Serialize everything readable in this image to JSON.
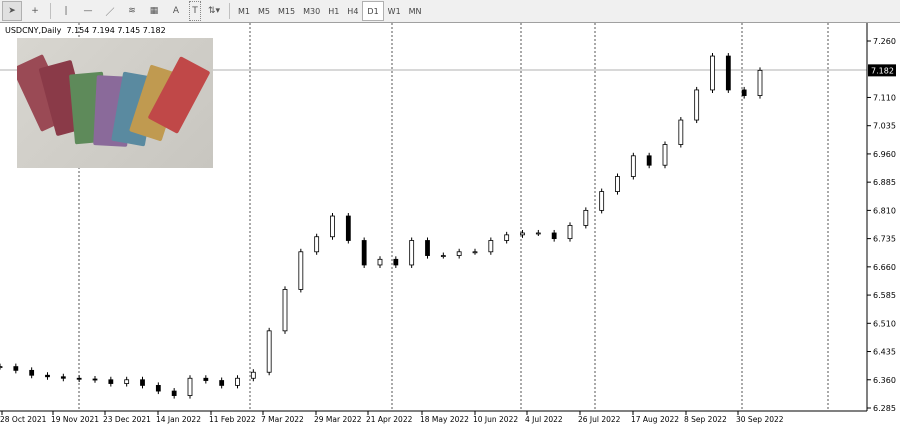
{
  "toolbar": {
    "tools": [
      "cursor-icon",
      "crosshair-icon",
      "vertical-line-icon",
      "horizontal-line-icon",
      "trendline-icon",
      "fibonacci-icon",
      "grid-icon",
      "text-icon",
      "label-icon",
      "arrows-icon"
    ],
    "text_tool": "A",
    "label_tool": "T",
    "timeframes": [
      "M1",
      "M5",
      "M15",
      "M30",
      "H1",
      "H4",
      "D1",
      "W1",
      "MN"
    ],
    "selected_timeframe": "D1"
  },
  "info": {
    "symbol": "USDCNY,Daily",
    "open": "7.154",
    "high": "7.194",
    "low": "7.145",
    "close": "7.182"
  },
  "chart_data": {
    "type": "candlestick",
    "ylim": [
      6.285,
      7.26
    ],
    "yticks": [
      "7.260",
      "7.110",
      "7.035",
      "6.960",
      "6.885",
      "6.810",
      "6.735",
      "6.660",
      "6.585",
      "6.510",
      "6.435",
      "6.360",
      "6.285"
    ],
    "current_price": "7.182",
    "xticks": [
      "28 Oct 2021",
      "19 Nov 2021",
      "23 Dec 2021",
      "14 Jan 2022",
      "11 Feb 2022",
      "7 Mar 2022",
      "29 Mar 2022",
      "21 Apr 2022",
      "18 May 2022",
      "10 Jun 2022",
      "4 Jul 2022",
      "26 Jul 2022",
      "17 Aug 2022",
      "8 Sep 2022",
      "30 Sep 2022"
    ],
    "closes": [
      6.395,
      6.385,
      6.372,
      6.368,
      6.364,
      6.362,
      6.36,
      6.35,
      6.36,
      6.345,
      6.33,
      6.318,
      6.364,
      6.358,
      6.345,
      6.364,
      6.38,
      6.49,
      6.6,
      6.7,
      6.74,
      6.795,
      6.73,
      6.665,
      6.68,
      6.665,
      6.73,
      6.69,
      6.69,
      6.7,
      6.7,
      6.73,
      6.745,
      6.75,
      6.75,
      6.735,
      6.77,
      6.81,
      6.86,
      6.9,
      6.955,
      6.93,
      6.985,
      7.05,
      7.13,
      7.22,
      7.13,
      7.115,
      7.182
    ],
    "grid": "vertical dotted"
  }
}
